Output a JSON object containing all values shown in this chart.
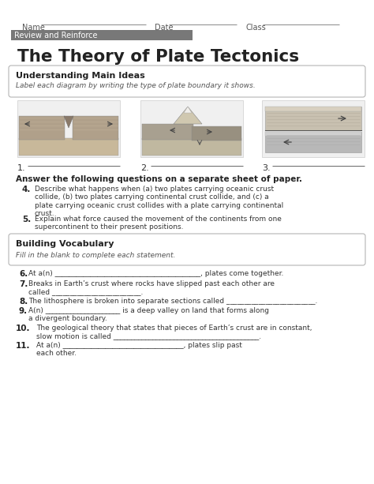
{
  "title": "The Theory of Plate Tectonics",
  "subtitle_bar": "Review and Reinforce",
  "subtitle_bar_color": "#808080",
  "name_label": "Name",
  "date_label": "Date",
  "class_label": "Class",
  "section1_title": "Understanding Main Ideas",
  "section1_instruction": "Label each diagram by writing the type of plate boundary it shows.",
  "diagram_labels": [
    "1.",
    "2.",
    "3."
  ],
  "questions_header": "Answer the following questions on a separate sheet of paper.",
  "q4_num": "4.",
  "q4": "Describe what happens when (a) two plates carrying oceanic crust\ncollide, (b) two plates carrying continental crust collide, and (c) a\nplate carrying oceanic crust collides with a plate carrying continental\ncrust.",
  "q5_num": "5.",
  "q5": "Explain what force caused the movement of the continents from one\nsupercontinent to their present positions.",
  "section2_title": "Building Vocabulary",
  "section2_instruction": "Fill in the blank to complete each statement.",
  "vq": [
    {
      "num": "6.",
      "text": "At a(n) _________________________________________, plates come together."
    },
    {
      "num": "7.",
      "text": "Breaks in Earth’s crust where rocks have slipped past each other are\ncalled _________________________."
    },
    {
      "num": "8.",
      "text": "The lithosphere is broken into separate sections called _________________________."
    },
    {
      "num": "9.",
      "text": "A(n) _____________________ is a deep valley on land that forms along\na divergent boundary."
    },
    {
      "num": "10.",
      "text": "The geological theory that states that pieces of Earth’s crust are in constant,\nslow motion is called _________________________________________."
    },
    {
      "num": "11.",
      "text": "At a(n) __________________________________, plates slip past\neach other."
    }
  ],
  "bg_color": "#ffffff",
  "text_dark": "#222222",
  "text_mid": "#333333",
  "text_light": "#555555",
  "box_border": "#aaaaaa",
  "line_color": "#888888",
  "bar_color": "#787878"
}
